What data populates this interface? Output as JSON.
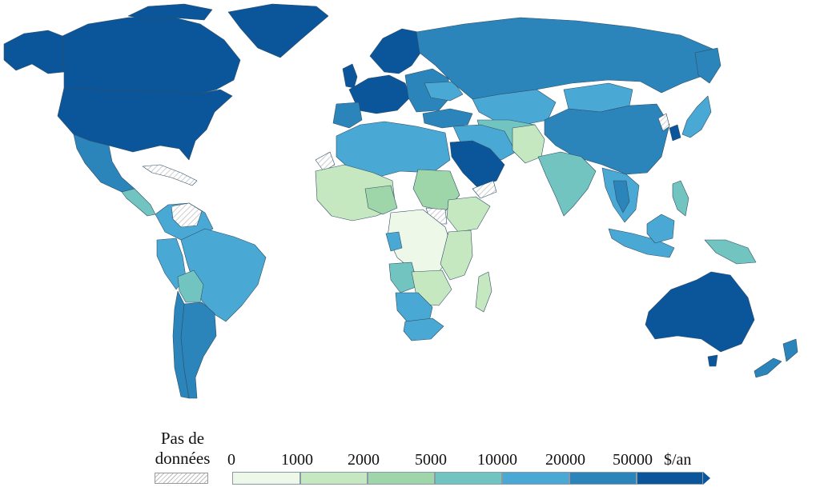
{
  "legend": {
    "no_data_label": "Pas de données",
    "ticks": [
      "0",
      "1000",
      "2000",
      "5000",
      "10000",
      "20000",
      "50000"
    ],
    "unit": "$/an",
    "bins": [
      {
        "from": "0",
        "to": "1000",
        "color": "#eef8e8"
      },
      {
        "from": "1000",
        "to": "2000",
        "color": "#c6e8c0"
      },
      {
        "from": "2000",
        "to": "5000",
        "color": "#9ed6aa"
      },
      {
        "from": "5000",
        "to": "10000",
        "color": "#72c4c0"
      },
      {
        "from": "10000",
        "to": "20000",
        "color": "#4aa9d4"
      },
      {
        "from": "20000",
        "to": "50000",
        "color": "#2b85bb"
      },
      {
        "from": "50000",
        "to": "",
        "color": "#0b559b"
      }
    ]
  },
  "colors": {
    "ocean": "#ffffff",
    "border": "#2f4f66",
    "no_data_hatch": "#bdbdbd"
  }
}
